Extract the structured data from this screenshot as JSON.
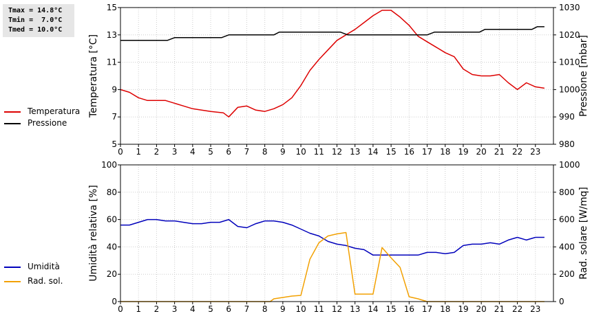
{
  "stats": {
    "tmax": "Tmax = 14.8°C",
    "tmin": "Tmin =  7.0°C",
    "tmed": "Tmed = 10.0°C"
  },
  "legend_top": [
    {
      "label": "Temperatura",
      "color": "#dd0000"
    },
    {
      "label": "Pressione",
      "color": "#000000"
    }
  ],
  "legend_bottom": [
    {
      "label": "Umidità",
      "color": "#0000bb"
    },
    {
      "label": "Rad. sol.",
      "color": "#f2a000"
    }
  ],
  "chart_data": [
    {
      "type": "line",
      "ylabel": "Temperatura [°C]",
      "y2label": "Pressione [mbar]",
      "xlim": [
        0,
        24
      ],
      "ylim": [
        5,
        15
      ],
      "y2lim": [
        980,
        1030
      ],
      "yticks": [
        5,
        7,
        9,
        11,
        13,
        15
      ],
      "y2ticks": [
        980,
        990,
        1000,
        1010,
        1020,
        1030
      ],
      "xticks": [
        0,
        1,
        2,
        3,
        4,
        5,
        6,
        7,
        8,
        9,
        10,
        11,
        12,
        13,
        14,
        15,
        16,
        17,
        18,
        19,
        20,
        21,
        22,
        23
      ],
      "grid": true,
      "series": [
        {
          "name": "Temperatura",
          "axis": "left",
          "color": "#dd0000",
          "points": [
            [
              0,
              9
            ],
            [
              0.5,
              8.8
            ],
            [
              1,
              8.4
            ],
            [
              1.5,
              8.2
            ],
            [
              2.5,
              8.2
            ],
            [
              3,
              8
            ],
            [
              3.5,
              7.8
            ],
            [
              4,
              7.6
            ],
            [
              5,
              7.4
            ],
            [
              5.7,
              7.3
            ],
            [
              6,
              7
            ],
            [
              6.5,
              7.7
            ],
            [
              7,
              7.8
            ],
            [
              7.5,
              7.5
            ],
            [
              8,
              7.4
            ],
            [
              8.5,
              7.6
            ],
            [
              9,
              7.9
            ],
            [
              9.5,
              8.4
            ],
            [
              10,
              9.3
            ],
            [
              10.5,
              10.4
            ],
            [
              11,
              11.2
            ],
            [
              11.5,
              11.9
            ],
            [
              12,
              12.6
            ],
            [
              12.5,
              13
            ],
            [
              13,
              13.4
            ],
            [
              13.5,
              13.9
            ],
            [
              14,
              14.4
            ],
            [
              14.5,
              14.8
            ],
            [
              15,
              14.8
            ],
            [
              15.5,
              14.3
            ],
            [
              16,
              13.7
            ],
            [
              16.5,
              12.9
            ],
            [
              17,
              12.5
            ],
            [
              17.5,
              12.1
            ],
            [
              18,
              11.7
            ],
            [
              18.5,
              11.4
            ],
            [
              19,
              10.5
            ],
            [
              19.5,
              10.1
            ],
            [
              20,
              10
            ],
            [
              20.5,
              10
            ],
            [
              21,
              10.1
            ],
            [
              21.5,
              9.5
            ],
            [
              22,
              9
            ],
            [
              22.5,
              9.5
            ],
            [
              23,
              9.2
            ],
            [
              23.5,
              9.1
            ]
          ]
        },
        {
          "name": "Pressione",
          "axis": "right",
          "color": "#000000",
          "points": [
            [
              0,
              1018
            ],
            [
              2.6,
              1018
            ],
            [
              3,
              1019
            ],
            [
              5.6,
              1019
            ],
            [
              6,
              1020
            ],
            [
              8.5,
              1020
            ],
            [
              8.8,
              1021
            ],
            [
              12.2,
              1021
            ],
            [
              12.6,
              1020
            ],
            [
              17,
              1020
            ],
            [
              17.4,
              1021
            ],
            [
              19.9,
              1021
            ],
            [
              20.2,
              1022
            ],
            [
              22.8,
              1022
            ],
            [
              23.1,
              1023
            ],
            [
              23.5,
              1023
            ]
          ]
        }
      ]
    },
    {
      "type": "line",
      "ylabel": "Umidità relativa [%]",
      "y2label": "Rad. solare [W/mq]",
      "xlim": [
        0,
        24
      ],
      "ylim": [
        0,
        100
      ],
      "y2lim": [
        0,
        1000
      ],
      "yticks": [
        0,
        20,
        40,
        60,
        80,
        100
      ],
      "y2ticks": [
        0,
        200,
        400,
        600,
        800,
        1000
      ],
      "xticks": [
        0,
        1,
        2,
        3,
        4,
        5,
        6,
        7,
        8,
        9,
        10,
        11,
        12,
        13,
        14,
        15,
        16,
        17,
        18,
        19,
        20,
        21,
        22,
        23
      ],
      "grid": true,
      "series": [
        {
          "name": "Umidità",
          "axis": "left",
          "color": "#0000bb",
          "points": [
            [
              0,
              56
            ],
            [
              0.5,
              56
            ],
            [
              1,
              58
            ],
            [
              1.5,
              60
            ],
            [
              2,
              60
            ],
            [
              2.5,
              59
            ],
            [
              3,
              59
            ],
            [
              3.5,
              58
            ],
            [
              4,
              57
            ],
            [
              4.5,
              57
            ],
            [
              5,
              58
            ],
            [
              5.5,
              58
            ],
            [
              6,
              60
            ],
            [
              6.5,
              55
            ],
            [
              7,
              54
            ],
            [
              7.5,
              57
            ],
            [
              8,
              59
            ],
            [
              8.5,
              59
            ],
            [
              9,
              58
            ],
            [
              9.5,
              56
            ],
            [
              10,
              53
            ],
            [
              10.5,
              50
            ],
            [
              11,
              48
            ],
            [
              11.5,
              44
            ],
            [
              12,
              42
            ],
            [
              12.5,
              41
            ],
            [
              13,
              39
            ],
            [
              13.5,
              38
            ],
            [
              14,
              34
            ],
            [
              14.5,
              34
            ],
            [
              15,
              34
            ],
            [
              15.5,
              34
            ],
            [
              16,
              34
            ],
            [
              16.5,
              34
            ],
            [
              17,
              36
            ],
            [
              17.5,
              36
            ],
            [
              18,
              35
            ],
            [
              18.5,
              36
            ],
            [
              19,
              41
            ],
            [
              19.5,
              42
            ],
            [
              20,
              42
            ],
            [
              20.5,
              43
            ],
            [
              21,
              42
            ],
            [
              21.5,
              45
            ],
            [
              22,
              47
            ],
            [
              22.5,
              45
            ],
            [
              23,
              47
            ],
            [
              23.5,
              47
            ]
          ]
        },
        {
          "name": "Rad. sol.",
          "axis": "right",
          "color": "#f2a000",
          "points": [
            [
              0,
              0
            ],
            [
              8.3,
              0
            ],
            [
              8.5,
              20
            ],
            [
              9,
              30
            ],
            [
              9.5,
              40
            ],
            [
              10,
              45
            ],
            [
              10.5,
              310
            ],
            [
              11,
              430
            ],
            [
              11.5,
              480
            ],
            [
              12,
              495
            ],
            [
              12.5,
              505
            ],
            [
              13,
              55
            ],
            [
              13.5,
              55
            ],
            [
              14,
              55
            ],
            [
              14.5,
              395
            ],
            [
              15,
              320
            ],
            [
              15.5,
              250
            ],
            [
              16,
              35
            ],
            [
              16.5,
              20
            ],
            [
              17,
              0
            ],
            [
              23.5,
              0
            ]
          ]
        }
      ]
    }
  ]
}
